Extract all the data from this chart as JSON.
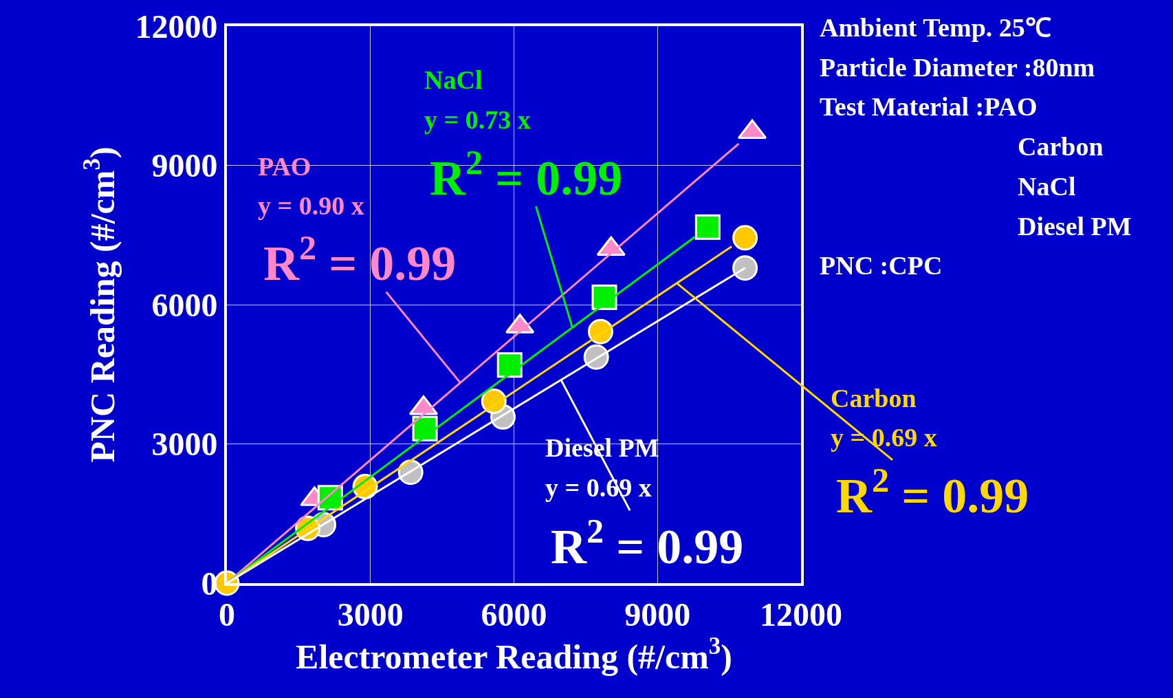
{
  "chart_data": {
    "type": "scatter",
    "xlabel": "Electrometer Reading (#/cm$^{3}$)",
    "ylabel": "PNC Reading (#/cm$^{3}$)",
    "xlim": [
      0,
      12000
    ],
    "ylim": [
      0,
      12000
    ],
    "xticks": [
      0,
      3000,
      6000,
      9000,
      12000
    ],
    "yticks": [
      0,
      3000,
      6000,
      9000,
      12000
    ],
    "grid": true,
    "series": [
      {
        "type": "line",
        "name": "PAO",
        "color": "#ff88c8",
        "x": [
          0,
          10700
        ],
        "values": [
          0,
          9470
        ]
      },
      {
        "type": "line",
        "name": "NaCl",
        "color": "#00ee00",
        "x": [
          0,
          9780
        ],
        "values": [
          0,
          7460
        ]
      },
      {
        "type": "line",
        "name": "Carbon",
        "color": "#ffd800",
        "x": [
          0,
          10550
        ],
        "values": [
          0,
          7250
        ]
      },
      {
        "type": "line",
        "name": "Diesel PM",
        "color": "#ffffff",
        "x": [
          0,
          10830
        ],
        "values": [
          0,
          6790
        ]
      },
      {
        "marker": "triangle",
        "color": "#ff88c8",
        "x": [
          1830,
          4110,
          6125,
          8030,
          10980
        ],
        "values": [
          1810,
          3770,
          5530,
          7200,
          9720
        ]
      },
      {
        "marker": "square",
        "color": "#00ee00",
        "x": [
          2160,
          4140,
          5910,
          7890,
          10050
        ],
        "values": [
          1840,
          3330,
          4700,
          6160,
          7670
        ]
      },
      {
        "marker": "circle",
        "color": "#c0c0c0",
        "x": [
          2020,
          3840,
          5770,
          7720,
          10830
        ],
        "values": [
          1260,
          2390,
          3580,
          4870,
          6790
        ]
      },
      {
        "marker": "circle",
        "color": "#ffc800",
        "x": [
          0,
          1690,
          2890,
          5580,
          7810,
          10830
        ],
        "values": [
          0,
          1180,
          2080,
          3920,
          5420,
          7440
        ]
      }
    ],
    "annotations": [
      "y = 0.90 x",
      {
        "text": "R$^{2}$ = 0.99",
        "x": 4875,
        "y": 4320
      },
      "y = 0.73 x",
      {
        "text": "R$^{2}$ = 0.99",
        "x": 7220,
        "y": 5510
      },
      "y = 0.69 x",
      {
        "text": "R$^{2}$ = 0.99",
        "x": 9406,
        "y": 6460
      },
      "y = 0.69 x",
      {
        "text": "R$^{2}$ = 0.99",
        "x": 6984,
        "y": 4380
      },
      "Ambient Temp. 25℃",
      "Particle Diameter :80nm",
      "Test Material :PAO",
      "Carbon",
      "NaCl",
      "Diesel PM",
      "PNC :CPC"
    ]
  }
}
